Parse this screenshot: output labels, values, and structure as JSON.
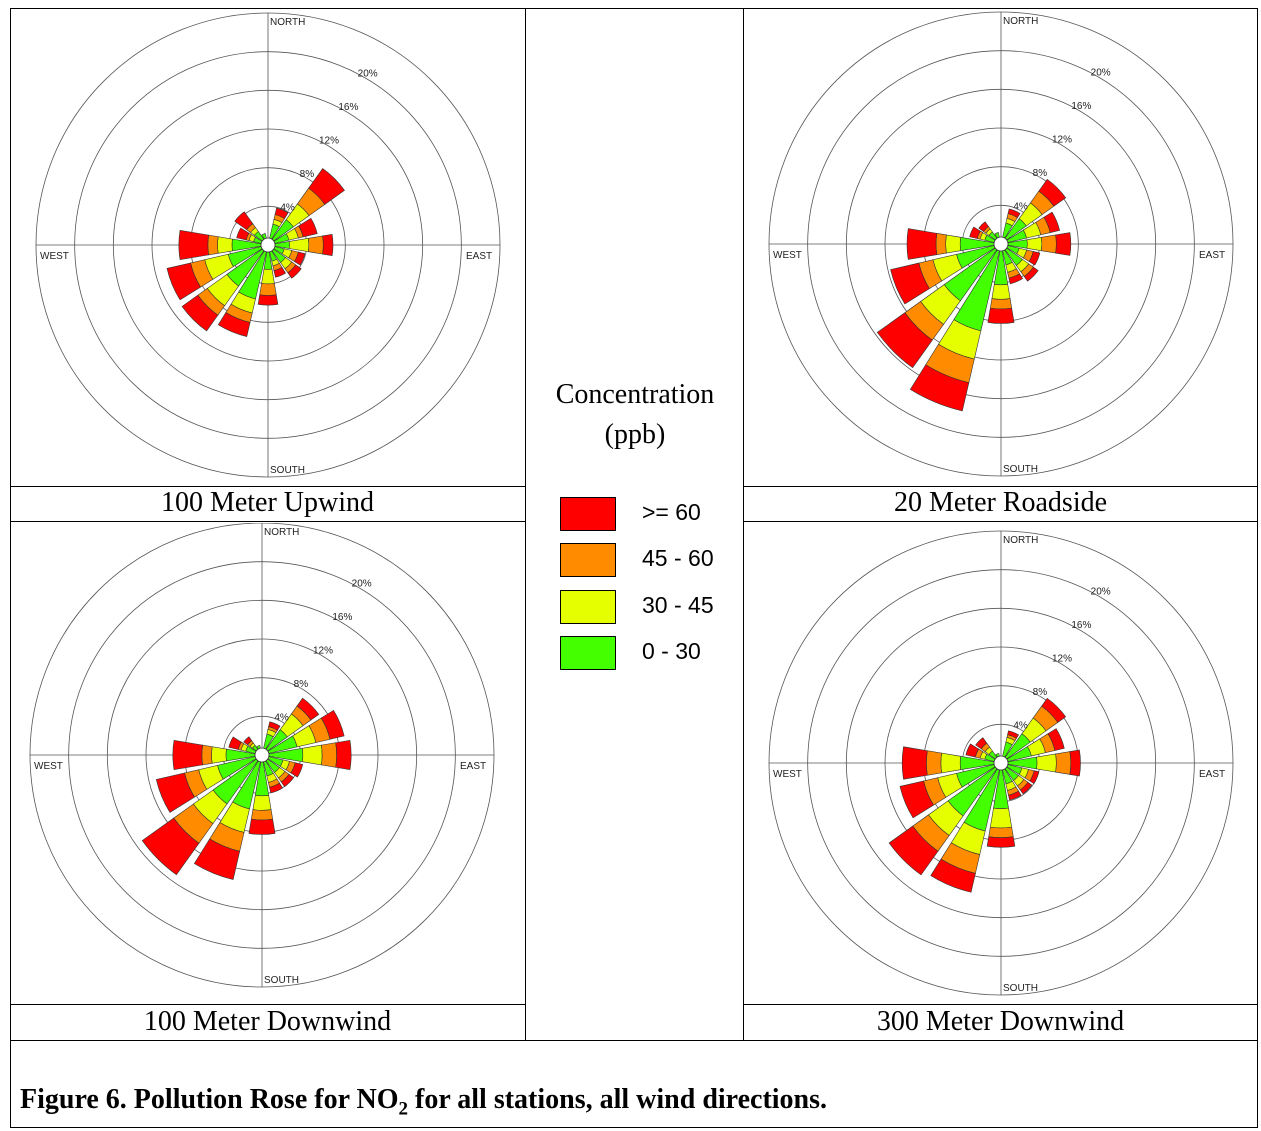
{
  "figure": {
    "caption_prefix": "Figure 6.  Pollution Rose for NO",
    "caption_sub": "2",
    "caption_suffix": " for all stations, all wind directions."
  },
  "legend": {
    "title_line1": "Concentration",
    "title_line2": "(ppb)",
    "items": [
      {
        "label": ">= 60",
        "color": "#ff0000"
      },
      {
        "label": "45 - 60",
        "color": "#ff8c00"
      },
      {
        "label": "30 - 45",
        "color": "#e6ff00"
      },
      {
        "label": "0 - 30",
        "color": "#44ff00"
      }
    ]
  },
  "colors": {
    "bin0": "#44ff00",
    "bin1": "#e6ff00",
    "bin2": "#ff8c00",
    "bin3": "#ff0000",
    "grid": "#555555"
  },
  "chart_data": [
    {
      "type": "rose",
      "title": "100 Meter Upwind",
      "directions": [
        "N",
        "NNE",
        "NE",
        "ENE",
        "E",
        "ESE",
        "SE",
        "SSE",
        "S",
        "SSW",
        "SW",
        "WSW",
        "W",
        "WNW",
        "NW",
        "NNW"
      ],
      "direction_labels": {
        "north": "NORTH",
        "east": "EAST",
        "south": "SOUTH",
        "west": "WEST"
      },
      "ring_labels": [
        "4%",
        "8%",
        "12%",
        "16%",
        "20%"
      ],
      "rmax": 24,
      "series": [
        {
          "name": "0 - 30",
          "values": [
            0.0,
            1.5,
            2.5,
            1.5,
            1.5,
            1.0,
            1.5,
            1.0,
            1.8,
            5.0,
            4.5,
            3.5,
            3.0,
            0.8,
            1.0,
            0.5
          ]
        },
        {
          "name": "30 - 45",
          "values": [
            0.0,
            0.5,
            2.0,
            1.0,
            2.0,
            0.8,
            0.8,
            0.5,
            1.5,
            1.5,
            2.5,
            2.5,
            1.5,
            0.5,
            0.5,
            0.0
          ]
        },
        {
          "name": "45 - 60",
          "values": [
            0.0,
            0.5,
            2.0,
            0.5,
            1.5,
            0.7,
            0.5,
            0.5,
            1.2,
            1.0,
            1.2,
            1.5,
            1.0,
            0.3,
            0.5,
            0.0
          ]
        },
        {
          "name": ">= 60",
          "values": [
            0.0,
            0.7,
            2.5,
            1.5,
            1.0,
            0.7,
            0.7,
            0.7,
            1.0,
            1.5,
            2.0,
            2.5,
            3.0,
            1.0,
            1.5,
            0.0
          ]
        }
      ]
    },
    {
      "type": "rose",
      "title": "20 Meter Roadside",
      "directions": [
        "N",
        "NNE",
        "NE",
        "ENE",
        "E",
        "ESE",
        "SE",
        "SSE",
        "S",
        "SSW",
        "SW",
        "WSW",
        "W",
        "WNW",
        "NW",
        "NNW"
      ],
      "direction_labels": {
        "north": "NORTH",
        "east": "EAST",
        "south": "SOUTH",
        "west": "WEST"
      },
      "ring_labels": [
        "4%",
        "8%",
        "12%",
        "16%",
        "20%"
      ],
      "rmax": 24,
      "series": [
        {
          "name": "0 - 30",
          "values": [
            0.0,
            1.5,
            2.5,
            2.0,
            2.0,
            1.2,
            2.0,
            1.5,
            3.5,
            8.5,
            6.5,
            4.0,
            3.5,
            1.0,
            0.8,
            0.5
          ]
        },
        {
          "name": "30 - 45",
          "values": [
            0.0,
            0.5,
            2.0,
            1.5,
            1.5,
            0.8,
            0.8,
            0.8,
            1.5,
            3.0,
            3.0,
            2.5,
            1.5,
            0.5,
            0.4,
            0.0
          ]
        },
        {
          "name": "45 - 60",
          "values": [
            0.0,
            0.5,
            1.5,
            1.0,
            1.5,
            0.7,
            0.6,
            0.6,
            1.0,
            2.5,
            2.0,
            1.5,
            1.0,
            0.3,
            0.3,
            0.0
          ]
        },
        {
          "name": ">= 60",
          "values": [
            0.0,
            0.5,
            1.5,
            1.0,
            1.5,
            0.7,
            0.6,
            0.6,
            1.5,
            3.0,
            3.5,
            3.0,
            3.0,
            0.8,
            0.6,
            0.0
          ]
        }
      ]
    },
    {
      "type": "rose",
      "title": "100 Meter Downwind",
      "directions": [
        "N",
        "NNE",
        "NE",
        "ENE",
        "E",
        "ESE",
        "SE",
        "SSE",
        "S",
        "SSW",
        "SW",
        "WSW",
        "W",
        "WNW",
        "NW",
        "NNW"
      ],
      "direction_labels": {
        "north": "NORTH",
        "east": "EAST",
        "south": "SOUTH",
        "west": "WEST"
      },
      "ring_labels": [
        "4%",
        "8%",
        "12%",
        "16%",
        "20%"
      ],
      "rmax": 24,
      "series": [
        {
          "name": "0 - 30",
          "values": [
            0.0,
            1.5,
            2.5,
            3.0,
            3.5,
            1.5,
            1.5,
            1.5,
            3.5,
            5.0,
            5.5,
            4.0,
            3.0,
            1.0,
            0.5,
            0.3
          ]
        },
        {
          "name": "30 - 45",
          "values": [
            0.0,
            0.5,
            2.0,
            2.0,
            2.0,
            0.7,
            0.7,
            0.7,
            1.5,
            2.5,
            2.5,
            2.0,
            1.5,
            0.5,
            0.3,
            0.0
          ]
        },
        {
          "name": "45 - 60",
          "values": [
            0.0,
            0.3,
            1.0,
            1.5,
            1.5,
            0.6,
            0.5,
            0.5,
            1.0,
            2.0,
            2.5,
            1.5,
            1.0,
            0.3,
            0.3,
            0.0
          ]
        },
        {
          "name": ">= 60",
          "values": [
            0.0,
            0.5,
            1.0,
            1.5,
            1.5,
            0.8,
            0.6,
            0.6,
            1.5,
            3.0,
            4.0,
            3.0,
            3.0,
            1.0,
            0.5,
            0.0
          ]
        }
      ]
    },
    {
      "type": "rose",
      "title": "300 Meter Downwind",
      "directions": [
        "N",
        "NNE",
        "NE",
        "ENE",
        "E",
        "ESE",
        "SE",
        "SSE",
        "S",
        "SSW",
        "SW",
        "WSW",
        "W",
        "WNW",
        "NW",
        "NNW"
      ],
      "direction_labels": {
        "north": "NORTH",
        "east": "EAST",
        "south": "SOUTH",
        "west": "WEST"
      },
      "ring_labels": [
        "4%",
        "8%",
        "12%",
        "16%",
        "20%"
      ],
      "rmax": 24,
      "series": [
        {
          "name": "0 - 30",
          "values": [
            0.0,
            1.5,
            3.0,
            2.5,
            3.0,
            1.5,
            1.5,
            1.5,
            4.0,
            6.5,
            6.0,
            4.0,
            3.5,
            1.0,
            0.8,
            0.3
          ]
        },
        {
          "name": "30 - 45",
          "values": [
            0.0,
            0.5,
            2.0,
            1.5,
            2.0,
            0.7,
            0.7,
            0.7,
            2.0,
            2.5,
            2.5,
            2.0,
            2.0,
            0.5,
            0.5,
            0.0
          ]
        },
        {
          "name": "45 - 60",
          "values": [
            0.0,
            0.3,
            1.5,
            1.0,
            1.5,
            0.6,
            0.5,
            0.5,
            1.0,
            2.0,
            2.0,
            1.5,
            1.5,
            0.5,
            0.5,
            0.0
          ]
        },
        {
          "name": ">= 60",
          "values": [
            0.0,
            0.4,
            1.0,
            1.0,
            1.0,
            0.5,
            0.5,
            0.5,
            1.0,
            2.0,
            3.0,
            2.5,
            2.5,
            1.0,
            0.7,
            0.0
          ]
        }
      ]
    }
  ]
}
